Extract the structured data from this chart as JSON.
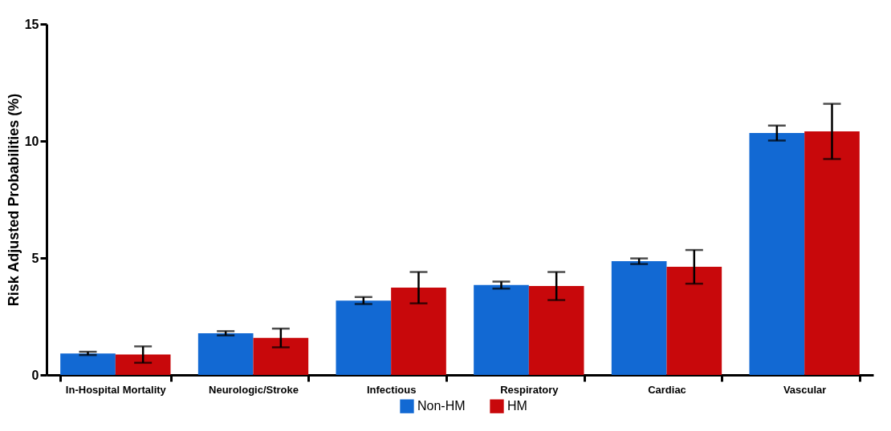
{
  "chart_data": {
    "type": "bar",
    "ylabel": "Risk Adjusted Probabilities (%)",
    "categories": [
      "In-Hospital Mortality",
      "Neurologic/Stroke",
      "Infectious",
      "Respiratory",
      "Cardiac",
      "Vascular"
    ],
    "series": [
      {
        "name": "Non-HM",
        "color": "#1269d3",
        "values": [
          0.92,
          1.78,
          3.18,
          3.84,
          4.86,
          10.34
        ],
        "errors": [
          0.07,
          0.09,
          0.15,
          0.15,
          0.12,
          0.32
        ]
      },
      {
        "name": "HM",
        "color": "#c8080b",
        "values": [
          0.87,
          1.58,
          3.73,
          3.8,
          4.62,
          10.41
        ],
        "errors": [
          0.35,
          0.4,
          0.67,
          0.6,
          0.72,
          1.18
        ]
      }
    ],
    "ylim": [
      0,
      15
    ],
    "yticks": [
      0,
      5,
      10,
      15
    ],
    "grid": false,
    "legend": "bottom"
  }
}
